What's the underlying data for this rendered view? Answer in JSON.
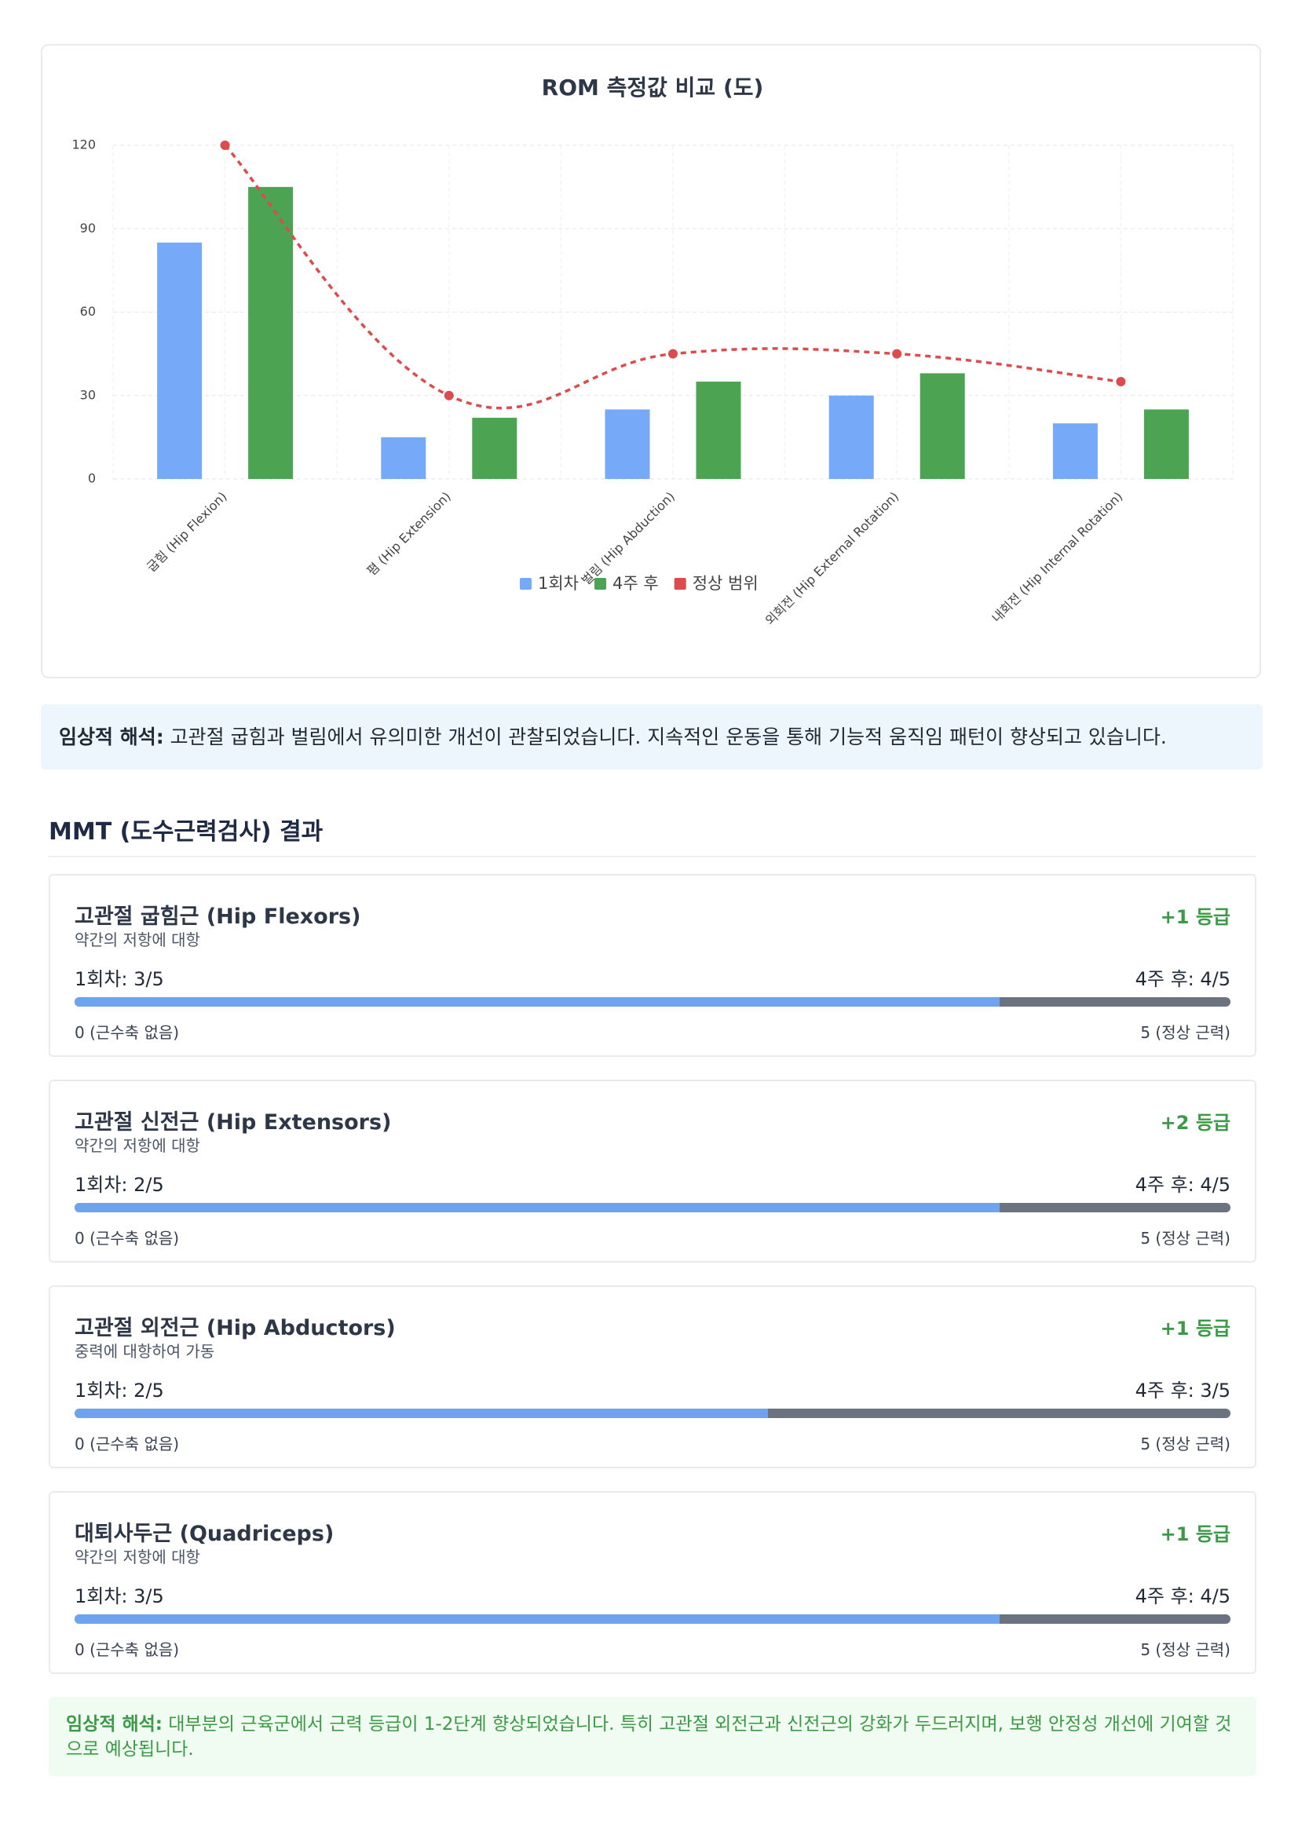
{
  "chart_data": {
    "type": "bar",
    "title": "ROM 측정값 비교 (도)",
    "categories": [
      "굽힘 (Hip Flexion)",
      "폄 (Hip Extension)",
      "벌림 (Hip Abduction)",
      "외회전 (Hip External Rotation)",
      "내회전 (Hip Internal Rotation)"
    ],
    "series": [
      {
        "name": "1회차",
        "color": "#76a9f8",
        "values": [
          85,
          15,
          25,
          30,
          20
        ]
      },
      {
        "name": "4주 후",
        "color": "#4ca352",
        "values": [
          105,
          22,
          35,
          38,
          25
        ]
      },
      {
        "name": "정상 범위",
        "color": "#dc4c4c",
        "type": "line",
        "values": [
          120,
          30,
          45,
          45,
          35
        ]
      }
    ],
    "ylim": [
      0,
      120
    ],
    "yticks": [
      0,
      30,
      60,
      90,
      120
    ],
    "grid": true
  },
  "rom_interpretation": {
    "label": "임상적 해석:",
    "text": " 고관절 굽힘과 벌림에서 유의미한 개선이 관찰되었습니다. 지속적인 운동을 통해 기능적 움직임 패턴이 향상되고 있습니다."
  },
  "mmt": {
    "title": "MMT (도수근력검사) 결과",
    "cards": [
      {
        "name": "고관절 굽힘근 (Hip Flexors)",
        "description": "약간의 저항에 대항",
        "change": "+1 등급",
        "before": "1회차: 3/5",
        "after": {
          "value": 4,
          "label": "4주 후: 4/5"
        },
        "scale": [
          {
            "value": 0,
            "label": "0 (근수축 없음)"
          },
          {
            "value": 5,
            "label": "5 (정상 근력)"
          }
        ]
      },
      {
        "name": "고관절 신전근 (Hip Extensors)",
        "description": "약간의 저항에 대항",
        "change": "+2 등급",
        "before": "1회차: 2/5",
        "after": {
          "value": 4,
          "label": "4주 후: 4/5"
        },
        "scale": [
          {
            "value": 0,
            "label": "0 (근수축 없음)"
          },
          {
            "value": 5,
            "label": "5 (정상 근력)"
          }
        ]
      },
      {
        "name": "고관절 외전근 (Hip Abductors)",
        "description": "중력에 대항하여 가동",
        "change": "+1 등급",
        "before": "1회차: 2/5",
        "after": {
          "value": 3,
          "label": "4주 후: 3/5"
        },
        "scale": [
          {
            "value": 0,
            "label": "0 (근수축 없음)"
          },
          {
            "value": 5,
            "label": "5 (정상 근력)"
          }
        ]
      },
      {
        "name": "대퇴사두근 (Quadriceps)",
        "description": "약간의 저항에 대항",
        "change": "+1 등급",
        "before": "1회차: 3/5",
        "after": {
          "value": 4,
          "label": "4주 후: 4/5"
        },
        "scale": [
          {
            "value": 0,
            "label": "0 (근수축 없음)"
          },
          {
            "value": 5,
            "label": "5 (정상 근력)"
          }
        ]
      }
    ]
  },
  "mmt_interpretation": {
    "label": "임상적 해석:",
    "text": " 대부분의 근육군에서 근력 등급이 1-2단계 향상되었습니다. 특히 고관절 외전근과 신전근의 강화가 두드러지며, 보행 안정성 개선에 기여할 것으로 예상됩니다."
  }
}
